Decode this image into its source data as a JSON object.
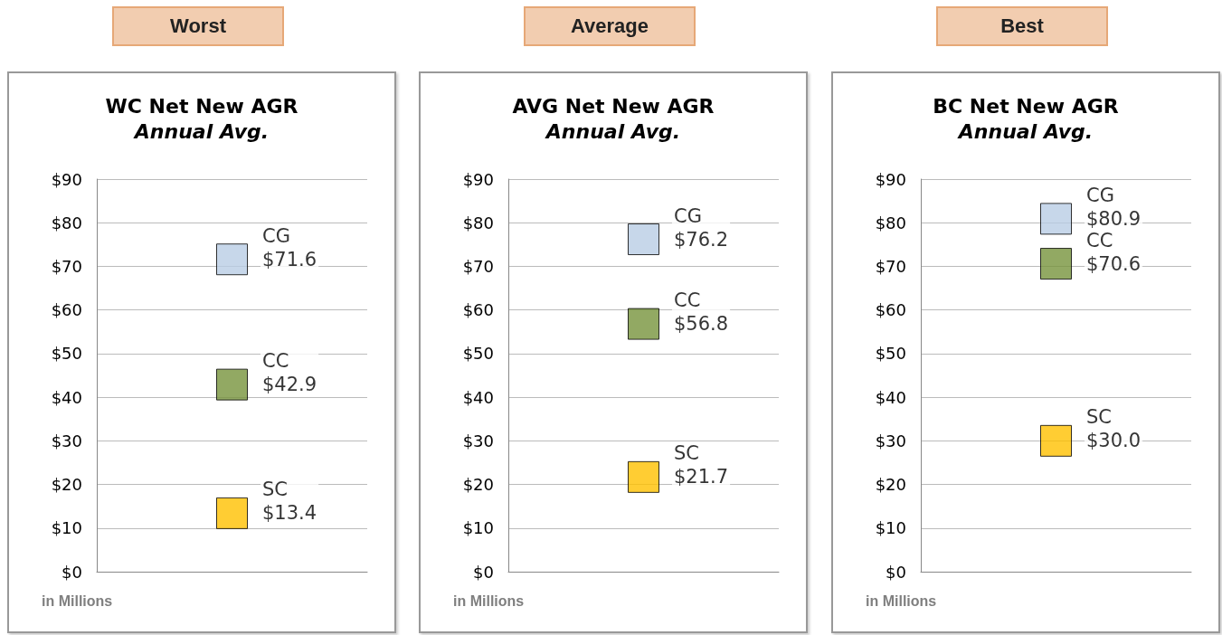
{
  "chart_data": [
    {
      "type": "scatter",
      "title": "WC Net New AGR",
      "subtitle": "Annual Avg.",
      "annotations": [
        "Worst",
        "in Millions"
      ],
      "categories": [
        null
      ],
      "ylim": [
        0,
        90
      ],
      "yticks": [
        {
          "value": 0,
          "label": "$0"
        },
        {
          "value": 10,
          "label": "$10"
        },
        {
          "value": 20,
          "label": "$20"
        },
        {
          "value": 30,
          "label": "$30"
        },
        {
          "value": 40,
          "label": "$40"
        },
        {
          "value": 50,
          "label": "$50"
        },
        {
          "value": 60,
          "label": "$60"
        },
        {
          "value": 70,
          "label": "$70"
        },
        {
          "value": 80,
          "label": "$80"
        },
        {
          "value": 90,
          "label": "$90"
        }
      ],
      "grid": "y",
      "marker": "square",
      "legend": false,
      "tick_labels": "y",
      "series": [
        {
          "name": "CG",
          "color": "#b9cde5",
          "values": [
            71.6
          ],
          "value_labels": [
            "$71.6"
          ]
        },
        {
          "name": "CC",
          "color": "#77933c",
          "values": [
            42.9
          ],
          "value_labels": [
            "$42.9"
          ]
        },
        {
          "name": "SC",
          "color": "#ffc000",
          "values": [
            13.4
          ],
          "value_labels": [
            "$13.4"
          ]
        }
      ]
    },
    {
      "type": "scatter",
      "title": "AVG Net New AGR",
      "subtitle": "Annual Avg.",
      "annotations": [
        "Average",
        "in Millions"
      ],
      "categories": [
        null
      ],
      "ylim": [
        0,
        90
      ],
      "yticks": [
        {
          "value": 0,
          "label": "$0"
        },
        {
          "value": 10,
          "label": "$10"
        },
        {
          "value": 20,
          "label": "$20"
        },
        {
          "value": 30,
          "label": "$30"
        },
        {
          "value": 40,
          "label": "$40"
        },
        {
          "value": 50,
          "label": "$50"
        },
        {
          "value": 60,
          "label": "$60"
        },
        {
          "value": 70,
          "label": "$70"
        },
        {
          "value": 80,
          "label": "$80"
        },
        {
          "value": 90,
          "label": "$90"
        }
      ],
      "grid": "y",
      "marker": "square",
      "legend": false,
      "tick_labels": "y",
      "series": [
        {
          "name": "CG",
          "color": "#b9cde5",
          "values": [
            76.2
          ],
          "value_labels": [
            "$76.2"
          ]
        },
        {
          "name": "CC",
          "color": "#77933c",
          "values": [
            56.8
          ],
          "value_labels": [
            "$56.8"
          ]
        },
        {
          "name": "SC",
          "color": "#ffc000",
          "values": [
            21.7
          ],
          "value_labels": [
            "$21.7"
          ]
        }
      ]
    },
    {
      "type": "scatter",
      "title": "BC Net New AGR",
      "subtitle": "Annual Avg.",
      "annotations": [
        "Best",
        "in Millions"
      ],
      "categories": [
        null
      ],
      "ylim": [
        0,
        90
      ],
      "yticks": [
        {
          "value": 0,
          "label": "$0"
        },
        {
          "value": 10,
          "label": "$10"
        },
        {
          "value": 20,
          "label": "$20"
        },
        {
          "value": 30,
          "label": "$30"
        },
        {
          "value": 40,
          "label": "$40"
        },
        {
          "value": 50,
          "label": "$50"
        },
        {
          "value": 60,
          "label": "$60"
        },
        {
          "value": 70,
          "label": "$70"
        },
        {
          "value": 80,
          "label": "$80"
        },
        {
          "value": 90,
          "label": "$90"
        }
      ],
      "grid": "y",
      "marker": "square",
      "legend": false,
      "tick_labels": "y",
      "series": [
        {
          "name": "CG",
          "color": "#b9cde5",
          "values": [
            80.9
          ],
          "value_labels": [
            "$80.9"
          ]
        },
        {
          "name": "CC",
          "color": "#77933c",
          "values": [
            70.6
          ],
          "value_labels": [
            "$70.6"
          ]
        },
        {
          "name": "SC",
          "color": "#ffc000",
          "values": [
            30.0
          ],
          "value_labels": [
            "$30.0"
          ]
        }
      ]
    }
  ]
}
